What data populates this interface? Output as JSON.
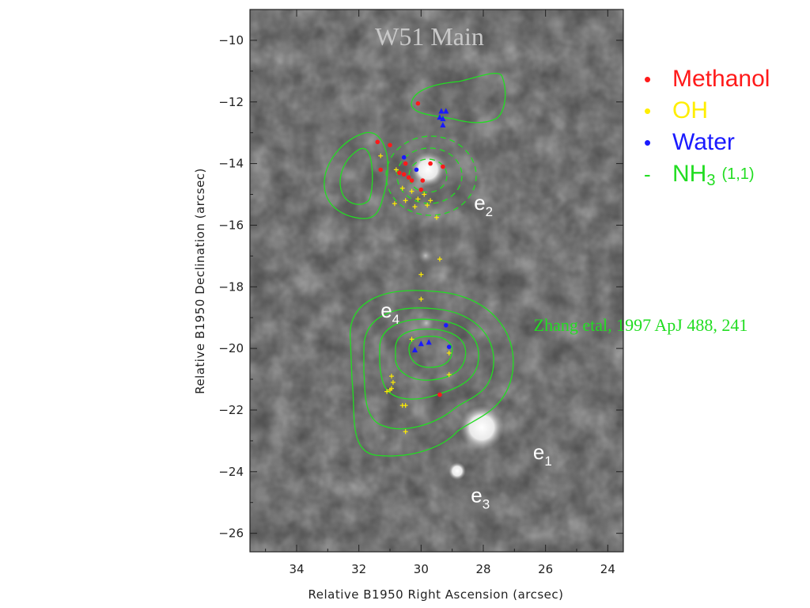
{
  "chart_data": {
    "type": "scatter",
    "title": "W51 Main",
    "xlabel": "Relative B1950 Right Ascension (arcsec)",
    "ylabel": "Relative B1950 Declination (arcsec)",
    "xlim": [
      35.5,
      23.5
    ],
    "ylim": [
      -26.6,
      -9.0
    ],
    "x_ticks": [
      34,
      32,
      30,
      28,
      26,
      24
    ],
    "y_ticks": [
      -10,
      -12,
      -14,
      -16,
      -18,
      -20,
      -22,
      -24,
      -26
    ],
    "annotation": "Zhang etal, 1997 ApJ 488, 241",
    "sources": [
      {
        "name": "e",
        "sub": "2",
        "x": 28.3,
        "y": -15.5
      },
      {
        "name": "e",
        "sub": "4",
        "x": 31.3,
        "y": -19.0
      },
      {
        "name": "e",
        "sub": "1",
        "x": 26.4,
        "y": -23.6
      },
      {
        "name": "e",
        "sub": "3",
        "x": 28.4,
        "y": -25.0
      }
    ],
    "series": [
      {
        "name": "Methanol",
        "marker": "dot",
        "color": "#ff1a1a",
        "points": [
          [
            30.1,
            -12.05
          ],
          [
            31.4,
            -13.3
          ],
          [
            31.0,
            -13.4
          ],
          [
            30.5,
            -14.0
          ],
          [
            31.3,
            -14.2
          ],
          [
            30.7,
            -14.3
          ],
          [
            30.55,
            -14.35
          ],
          [
            30.4,
            -14.45
          ],
          [
            30.3,
            -14.55
          ],
          [
            29.7,
            -14.0
          ],
          [
            29.3,
            -14.1
          ],
          [
            29.95,
            -14.55
          ],
          [
            30.0,
            -14.85
          ],
          [
            29.4,
            -21.5
          ]
        ]
      },
      {
        "name": "OH",
        "marker": "plus",
        "color": "#ffee00",
        "points": [
          [
            31.3,
            -13.75
          ],
          [
            30.8,
            -14.2
          ],
          [
            30.6,
            -14.8
          ],
          [
            30.3,
            -14.9
          ],
          [
            29.9,
            -15.0
          ],
          [
            30.1,
            -15.15
          ],
          [
            29.7,
            -15.2
          ],
          [
            30.5,
            -15.2
          ],
          [
            30.85,
            -15.3
          ],
          [
            29.8,
            -15.35
          ],
          [
            30.2,
            -15.4
          ],
          [
            29.5,
            -15.75
          ],
          [
            29.4,
            -17.1
          ],
          [
            30.0,
            -17.6
          ],
          [
            30.0,
            -18.4
          ],
          [
            30.3,
            -19.7
          ],
          [
            29.1,
            -20.15
          ],
          [
            30.95,
            -20.9
          ],
          [
            30.9,
            -21.1
          ],
          [
            30.95,
            -21.3
          ],
          [
            31.0,
            -21.35
          ],
          [
            31.1,
            -21.4
          ],
          [
            29.1,
            -20.85
          ],
          [
            30.6,
            -21.85
          ],
          [
            30.5,
            -21.85
          ],
          [
            30.5,
            -22.7
          ]
        ]
      },
      {
        "name": "Water",
        "marker": "dot",
        "color": "#1a1aff",
        "points": [
          [
            30.15,
            -14.2
          ],
          [
            30.55,
            -13.8
          ],
          [
            29.2,
            -19.25
          ],
          [
            29.1,
            -19.95
          ]
        ]
      },
      {
        "name": "Water",
        "marker": "triangle",
        "color": "#1a1aff",
        "points": [
          [
            29.35,
            -12.3
          ],
          [
            29.2,
            -12.3
          ],
          [
            29.4,
            -12.5
          ],
          [
            29.3,
            -12.55
          ],
          [
            29.3,
            -12.75
          ],
          [
            30.2,
            -20.05
          ],
          [
            30.0,
            -19.85
          ],
          [
            29.75,
            -19.8
          ]
        ]
      },
      {
        "name": "NH3 (1,1)",
        "marker": "contour",
        "color": "#22dd22"
      }
    ]
  },
  "legend": {
    "items": [
      {
        "symbol": "•",
        "text": "Methanol",
        "color": "#ff1a1a"
      },
      {
        "symbol": "•",
        "text": "OH",
        "color": "#ffee00"
      },
      {
        "symbol": "•",
        "text": "Water",
        "color": "#1a1aff"
      },
      {
        "symbol": "-",
        "text": "NH",
        "sub": "3",
        "suffix": "(1,1)",
        "color": "#22dd22"
      }
    ]
  }
}
